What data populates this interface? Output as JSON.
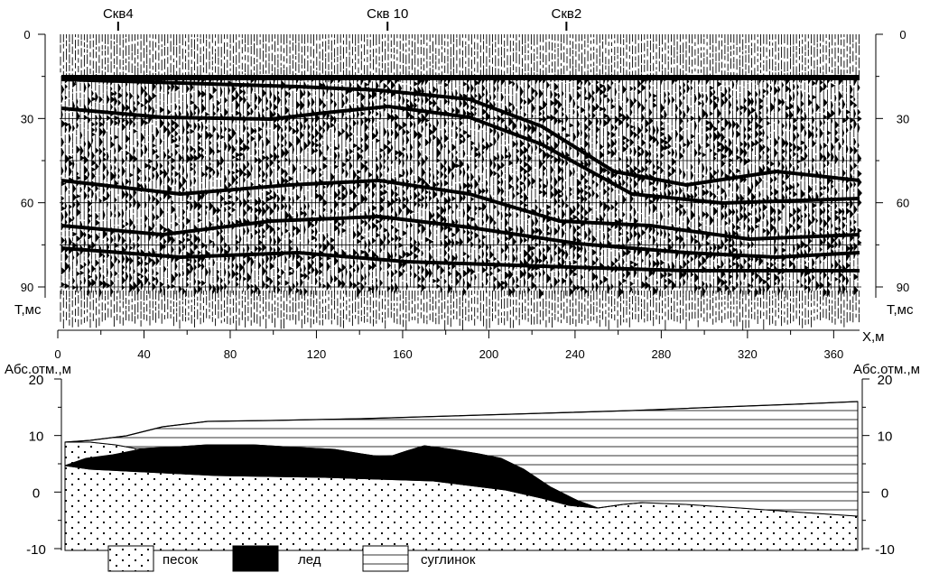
{
  "wells": [
    {
      "label": "Скв4",
      "x": 28
    },
    {
      "label": "Скв 10",
      "x": 153
    },
    {
      "label": "Скв2",
      "x": 236
    }
  ],
  "seismic": {
    "y_label": "Т,мс",
    "x_label": "Х,м",
    "t_ticks": [
      "0",
      "30",
      "60",
      "90"
    ],
    "t_values": [
      0,
      30,
      60,
      90
    ],
    "t_range": [
      0,
      100
    ],
    "x_ticks": [
      "0",
      "40",
      "80",
      "120",
      "160",
      "200",
      "240",
      "280",
      "320",
      "360"
    ],
    "x_values": [
      0,
      40,
      80,
      120,
      160,
      200,
      240,
      280,
      320,
      360
    ],
    "x_range": [
      0,
      372
    ]
  },
  "section": {
    "y_label_left": "Абс.отм.,м",
    "y_label_right": "Абс.отм.,м",
    "y_ticks": [
      "20",
      "10",
      "0",
      "-10"
    ],
    "y_values": [
      20,
      10,
      0,
      -10
    ],
    "y_range": [
      -10,
      20
    ]
  },
  "legend": {
    "sand": "песок",
    "ice": "лед",
    "loam": "суглинок"
  },
  "colors": {
    "ink": "#000000",
    "paper": "#ffffff"
  }
}
